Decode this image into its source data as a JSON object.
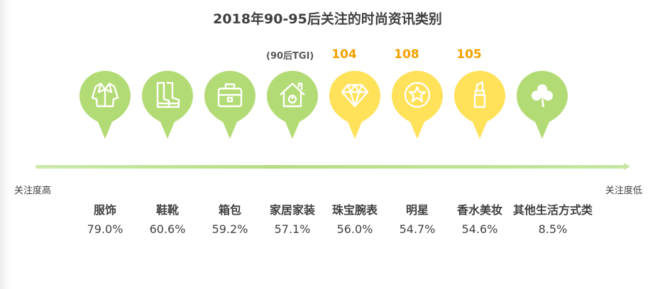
{
  "chart_data": {
    "type": "table",
    "title": "2018年90-95后关注的时尚资讯类别",
    "tgi_label": "(90后TGI)",
    "categories": [
      "服饰",
      "鞋靴",
      "箱包",
      "家居家装",
      "珠宝腕表",
      "明星",
      "香水美妆",
      "其他生活方式类"
    ],
    "values": [
      "79.0%",
      "60.6%",
      "59.2%",
      "57.1%",
      "56.0%",
      "54.7%",
      "54.6%",
      "8.5%"
    ],
    "tgi": [
      null,
      null,
      null,
      null,
      "104",
      "108",
      "105",
      null
    ],
    "axis_left_label": "关注度高",
    "axis_right_label": "关注度低"
  },
  "colors": {
    "green": "#b3db75",
    "yellow": "#ffe15a",
    "tgi": "#f2a100",
    "text": "#404040"
  },
  "icons": [
    "jacket-icon",
    "boots-icon",
    "bag-icon",
    "house-icon",
    "diamond-icon",
    "star-badge-icon",
    "lipstick-icon",
    "clover-icon"
  ]
}
